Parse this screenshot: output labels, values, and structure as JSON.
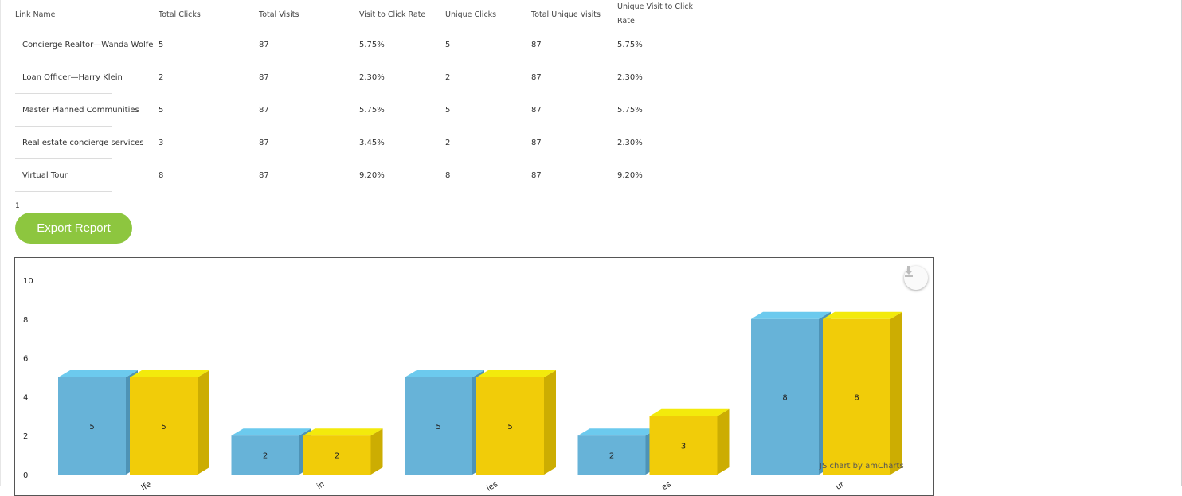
{
  "table": {
    "headers": [
      "Link Name",
      "Total Clicks",
      "Total Visits",
      "Visit to Click Rate",
      "Unique Clicks",
      "Total Unique Visits",
      "Unique Visit to Click Rate"
    ],
    "rows": [
      [
        "Concierge Realtor—Wanda Wolfe",
        "5",
        "87",
        "5.75%",
        "5",
        "87",
        "5.75%"
      ],
      [
        "Loan Officer—Harry Klein",
        "2",
        "87",
        "2.30%",
        "2",
        "87",
        "2.30%"
      ],
      [
        "Master Planned Communities",
        "5",
        "87",
        "5.75%",
        "5",
        "87",
        "5.75%"
      ],
      [
        "Real estate concierge services",
        "3",
        "87",
        "3.45%",
        "2",
        "87",
        "2.30%"
      ],
      [
        "Virtual Tour",
        "8",
        "87",
        "9.20%",
        "8",
        "87",
        "9.20%"
      ]
    ]
  },
  "pagination": {
    "page": "1"
  },
  "export_button": {
    "label": "Export Report"
  },
  "chart_data": {
    "type": "bar",
    "categories": [
      "Concierge Realtor—Wanda Wolfe",
      "Loan Officer—Harry Klein",
      "Master Planned Communities",
      "Real estate concierge services",
      "Virtual Tour"
    ],
    "category_labels_visible": [
      "lfe",
      "in",
      "ies",
      "es",
      "ur"
    ],
    "series": [
      {
        "values": [
          5,
          2,
          5,
          2,
          8
        ],
        "color": "#67b3d8",
        "top_color": "#6ccaee",
        "side_color": "#4e93b6"
      },
      {
        "values": [
          5,
          2,
          5,
          3,
          8
        ],
        "color": "#f1cc09",
        "top_color": "#f3ea0c",
        "side_color": "#ccad02"
      }
    ],
    "y_ticks": [
      0,
      2,
      4,
      6,
      8,
      10
    ],
    "ylim": [
      0,
      10
    ],
    "depth3d": true,
    "data_labels": true,
    "credit": "JS chart by amCharts"
  },
  "icons": {
    "download": "download-icon"
  }
}
